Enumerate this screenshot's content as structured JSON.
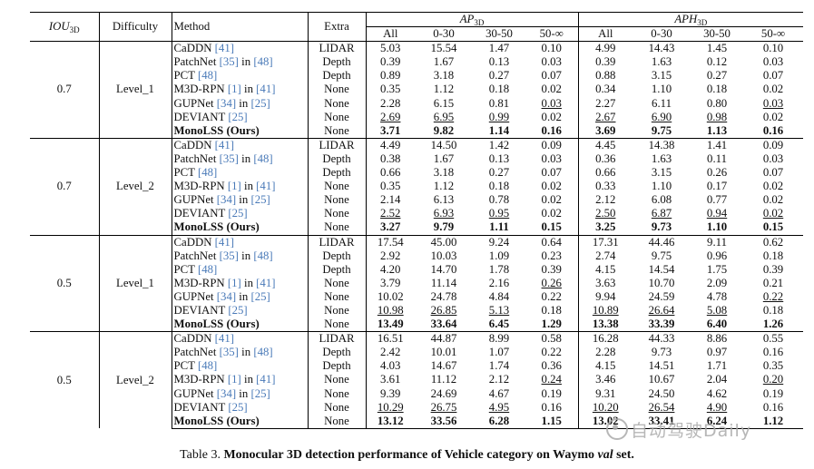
{
  "header": {
    "iou": "IOU",
    "iou_sub": "3D",
    "difficulty": "Difficulty",
    "method": "Method",
    "extra": "Extra",
    "ap": "AP",
    "ap_sub": "3D",
    "aph": "APH",
    "aph_sub": "3D",
    "sub_cols": [
      "All",
      "0-30",
      "30-50",
      "50-∞",
      "All",
      "0-30",
      "30-50",
      "50-∞"
    ]
  },
  "groups": [
    {
      "iou": "0.7",
      "difficulty": "Level_1",
      "rows": [
        {
          "method": "CaDDN",
          "ref": "[41]",
          "extra": "LIDAR",
          "vals": [
            "5.03",
            "15.54",
            "1.47",
            "0.10",
            "4.99",
            "14.43",
            "1.45",
            "0.10"
          ],
          "fmt": [
            "",
            "",
            "",
            "",
            "",
            "",
            "",
            ""
          ]
        },
        {
          "method": "PatchNet",
          "ref": "[35]",
          "in": " in ",
          "ref2": "[48]",
          "extra": "Depth",
          "vals": [
            "0.39",
            "1.67",
            "0.13",
            "0.03",
            "0.39",
            "1.63",
            "0.12",
            "0.03"
          ],
          "fmt": [
            "",
            "",
            "",
            "",
            "",
            "",
            "",
            ""
          ]
        },
        {
          "method": "PCT",
          "ref": "[48]",
          "extra": "Depth",
          "vals": [
            "0.89",
            "3.18",
            "0.27",
            "0.07",
            "0.88",
            "3.15",
            "0.27",
            "0.07"
          ],
          "fmt": [
            "",
            "",
            "",
            "",
            "",
            "",
            "",
            ""
          ]
        },
        {
          "method": "M3D-RPN",
          "ref": "[1]",
          "in": " in ",
          "ref2": "[41]",
          "extra": "None",
          "vals": [
            "0.35",
            "1.12",
            "0.18",
            "0.02",
            "0.34",
            "1.10",
            "0.18",
            "0.02"
          ],
          "fmt": [
            "",
            "",
            "",
            "",
            "",
            "",
            "",
            ""
          ]
        },
        {
          "method": "GUPNet",
          "ref": "[34]",
          "in": " in ",
          "ref2": "[25]",
          "extra": "None",
          "vals": [
            "2.28",
            "6.15",
            "0.81",
            "0.03",
            "2.27",
            "6.11",
            "0.80",
            "0.03"
          ],
          "fmt": [
            "",
            "",
            "",
            "u",
            "",
            "",
            "",
            "u"
          ]
        },
        {
          "method": "DEVIANT",
          "ref": "[25]",
          "extra": "None",
          "vals": [
            "2.69",
            "6.95",
            "0.99",
            "0.02",
            "2.67",
            "6.90",
            "0.98",
            "0.02"
          ],
          "fmt": [
            "u",
            "u",
            "u",
            "",
            "u",
            "u",
            "u",
            ""
          ]
        },
        {
          "method": "MonoLSS (Ours)",
          "bold": true,
          "extra": "None",
          "vals": [
            "3.71",
            "9.82",
            "1.14",
            "0.16",
            "3.69",
            "9.75",
            "1.13",
            "0.16"
          ],
          "fmt": [
            "b",
            "b",
            "b",
            "b",
            "b",
            "b",
            "b",
            "b"
          ]
        }
      ]
    },
    {
      "iou": "0.7",
      "difficulty": "Level_2",
      "rows": [
        {
          "method": "CaDDN",
          "ref": "[41]",
          "extra": "LIDAR",
          "vals": [
            "4.49",
            "14.50",
            "1.42",
            "0.09",
            "4.45",
            "14.38",
            "1.41",
            "0.09"
          ],
          "fmt": [
            "",
            "",
            "",
            "",
            "",
            "",
            "",
            ""
          ]
        },
        {
          "method": "PatchNet",
          "ref": "[35]",
          "in": " in ",
          "ref2": "[48]",
          "extra": "Depth",
          "vals": [
            "0.38",
            "1.67",
            "0.13",
            "0.03",
            "0.36",
            "1.63",
            "0.11",
            "0.03"
          ],
          "fmt": [
            "",
            "",
            "",
            "",
            "",
            "",
            "",
            ""
          ]
        },
        {
          "method": "PCT",
          "ref": "[48]",
          "extra": "Depth",
          "vals": [
            "0.66",
            "3.18",
            "0.27",
            "0.07",
            "0.66",
            "3.15",
            "0.26",
            "0.07"
          ],
          "fmt": [
            "",
            "",
            "",
            "",
            "",
            "",
            "",
            ""
          ]
        },
        {
          "method": "M3D-RPN",
          "ref": "[1]",
          "in": " in ",
          "ref2": "[41]",
          "extra": "None",
          "vals": [
            "0.35",
            "1.12",
            "0.18",
            "0.02",
            "0.33",
            "1.10",
            "0.17",
            "0.02"
          ],
          "fmt": [
            "",
            "",
            "",
            "",
            "",
            "",
            "",
            ""
          ]
        },
        {
          "method": "GUPNet",
          "ref": "[34]",
          "in": " in ",
          "ref2": "[25]",
          "extra": "None",
          "vals": [
            "2.14",
            "6.13",
            "0.78",
            "0.02",
            "2.12",
            "6.08",
            "0.77",
            "0.02"
          ],
          "fmt": [
            "",
            "",
            "",
            "",
            "",
            "",
            "",
            ""
          ]
        },
        {
          "method": "DEVIANT",
          "ref": "[25]",
          "extra": "None",
          "vals": [
            "2.52",
            "6.93",
            "0.95",
            "0.02",
            "2.50",
            "6.87",
            "0.94",
            "0.02"
          ],
          "fmt": [
            "u",
            "u",
            "u",
            "",
            "u",
            "u",
            "u",
            "u"
          ]
        },
        {
          "method": "MonoLSS (Ours)",
          "bold": true,
          "extra": "None",
          "vals": [
            "3.27",
            "9.79",
            "1.11",
            "0.15",
            "3.25",
            "9.73",
            "1.10",
            "0.15"
          ],
          "fmt": [
            "b",
            "b",
            "b",
            "b",
            "b",
            "b",
            "b",
            "b"
          ]
        }
      ]
    },
    {
      "iou": "0.5",
      "difficulty": "Level_1",
      "rows": [
        {
          "method": "CaDDN",
          "ref": "[41]",
          "extra": "LIDAR",
          "vals": [
            "17.54",
            "45.00",
            "9.24",
            "0.64",
            "17.31",
            "44.46",
            "9.11",
            "0.62"
          ],
          "fmt": [
            "",
            "",
            "",
            "",
            "",
            "",
            "",
            ""
          ]
        },
        {
          "method": "PatchNet",
          "ref": "[35]",
          "in": " in ",
          "ref2": "[48]",
          "extra": "Depth",
          "vals": [
            "2.92",
            "10.03",
            "1.09",
            "0.23",
            "2.74",
            "9.75",
            "0.96",
            "0.18"
          ],
          "fmt": [
            "",
            "",
            "",
            "",
            "",
            "",
            "",
            ""
          ]
        },
        {
          "method": "PCT",
          "ref": "[48]",
          "extra": "Depth",
          "vals": [
            "4.20",
            "14.70",
            "1.78",
            "0.39",
            "4.15",
            "14.54",
            "1.75",
            "0.39"
          ],
          "fmt": [
            "",
            "",
            "",
            "",
            "",
            "",
            "",
            ""
          ]
        },
        {
          "method": "M3D-RPN",
          "ref": "[1]",
          "in": " in ",
          "ref2": "[41]",
          "extra": "None",
          "vals": [
            "3.79",
            "11.14",
            "2.16",
            "0.26",
            "3.63",
            "10.70",
            "2.09",
            "0.21"
          ],
          "fmt": [
            "",
            "",
            "",
            "u",
            "",
            "",
            "",
            ""
          ]
        },
        {
          "method": "GUPNet",
          "ref": "[34]",
          "in": " in ",
          "ref2": "[25]",
          "extra": "None",
          "vals": [
            "10.02",
            "24.78",
            "4.84",
            "0.22",
            "9.94",
            "24.59",
            "4.78",
            "0.22"
          ],
          "fmt": [
            "",
            "",
            "",
            "",
            "",
            "",
            "",
            "u"
          ]
        },
        {
          "method": "DEVIANT",
          "ref": "[25]",
          "extra": "None",
          "vals": [
            "10.98",
            "26.85",
            "5.13",
            "0.18",
            "10.89",
            "26.64",
            "5.08",
            "0.18"
          ],
          "fmt": [
            "u",
            "u",
            "u",
            "",
            "u",
            "u",
            "u",
            ""
          ]
        },
        {
          "method": "MonoLSS (Ours)",
          "bold": true,
          "extra": "None",
          "vals": [
            "13.49",
            "33.64",
            "6.45",
            "1.29",
            "13.38",
            "33.39",
            "6.40",
            "1.26"
          ],
          "fmt": [
            "b",
            "b",
            "b",
            "b",
            "b",
            "b",
            "b",
            "b"
          ]
        }
      ]
    },
    {
      "iou": "0.5",
      "difficulty": "Level_2",
      "rows": [
        {
          "method": "CaDDN",
          "ref": "[41]",
          "extra": "LIDAR",
          "vals": [
            "16.51",
            "44.87",
            "8.99",
            "0.58",
            "16.28",
            "44.33",
            "8.86",
            "0.55"
          ],
          "fmt": [
            "",
            "",
            "",
            "",
            "",
            "",
            "",
            ""
          ]
        },
        {
          "method": "PatchNet",
          "ref": "[35]",
          "in": " in ",
          "ref2": "[48]",
          "extra": "Depth",
          "vals": [
            "2.42",
            "10.01",
            "1.07",
            "0.22",
            "2.28",
            "9.73",
            "0.97",
            "0.16"
          ],
          "fmt": [
            "",
            "",
            "",
            "",
            "",
            "",
            "",
            ""
          ]
        },
        {
          "method": "PCT",
          "ref": "[48]",
          "extra": "Depth",
          "vals": [
            "4.03",
            "14.67",
            "1.74",
            "0.36",
            "4.15",
            "14.51",
            "1.71",
            "0.35"
          ],
          "fmt": [
            "",
            "",
            "",
            "",
            "",
            "",
            "",
            ""
          ]
        },
        {
          "method": "M3D-RPN",
          "ref": "[1]",
          "in": " in ",
          "ref2": "[41]",
          "extra": "None",
          "vals": [
            "3.61",
            "11.12",
            "2.12",
            "0.24",
            "3.46",
            "10.67",
            "2.04",
            "0.20"
          ],
          "fmt": [
            "",
            "",
            "",
            "u",
            "",
            "",
            "",
            "u"
          ]
        },
        {
          "method": "GUPNet",
          "ref": "[34]",
          "in": " in ",
          "ref2": "[25]",
          "extra": "None",
          "vals": [
            "9.39",
            "24.69",
            "4.67",
            "0.19",
            "9.31",
            "24.50",
            "4.62",
            "0.19"
          ],
          "fmt": [
            "",
            "",
            "",
            "",
            "",
            "",
            "",
            ""
          ]
        },
        {
          "method": "DEVIANT",
          "ref": "[25]",
          "extra": "None",
          "vals": [
            "10.29",
            "26.75",
            "4.95",
            "0.16",
            "10.20",
            "26.54",
            "4.90",
            "0.16"
          ],
          "fmt": [
            "u",
            "u",
            "u",
            "",
            "u",
            "u",
            "u",
            ""
          ]
        },
        {
          "method": "MonoLSS (Ours)",
          "bold": true,
          "extra": "None",
          "vals": [
            "13.12",
            "33.56",
            "6.28",
            "1.15",
            "13.02",
            "33.41",
            "6.24",
            "1.12"
          ],
          "fmt": [
            "b",
            "b",
            "b",
            "b",
            "b",
            "b",
            "b",
            "b"
          ]
        }
      ]
    }
  ],
  "caption": {
    "prefix": "Table 3. ",
    "bold_a": "Monocular 3D detection performance of Vehicle category on Waymo ",
    "italic": "val",
    "bold_b": " set."
  },
  "watermark": "自动驾驶Daily"
}
